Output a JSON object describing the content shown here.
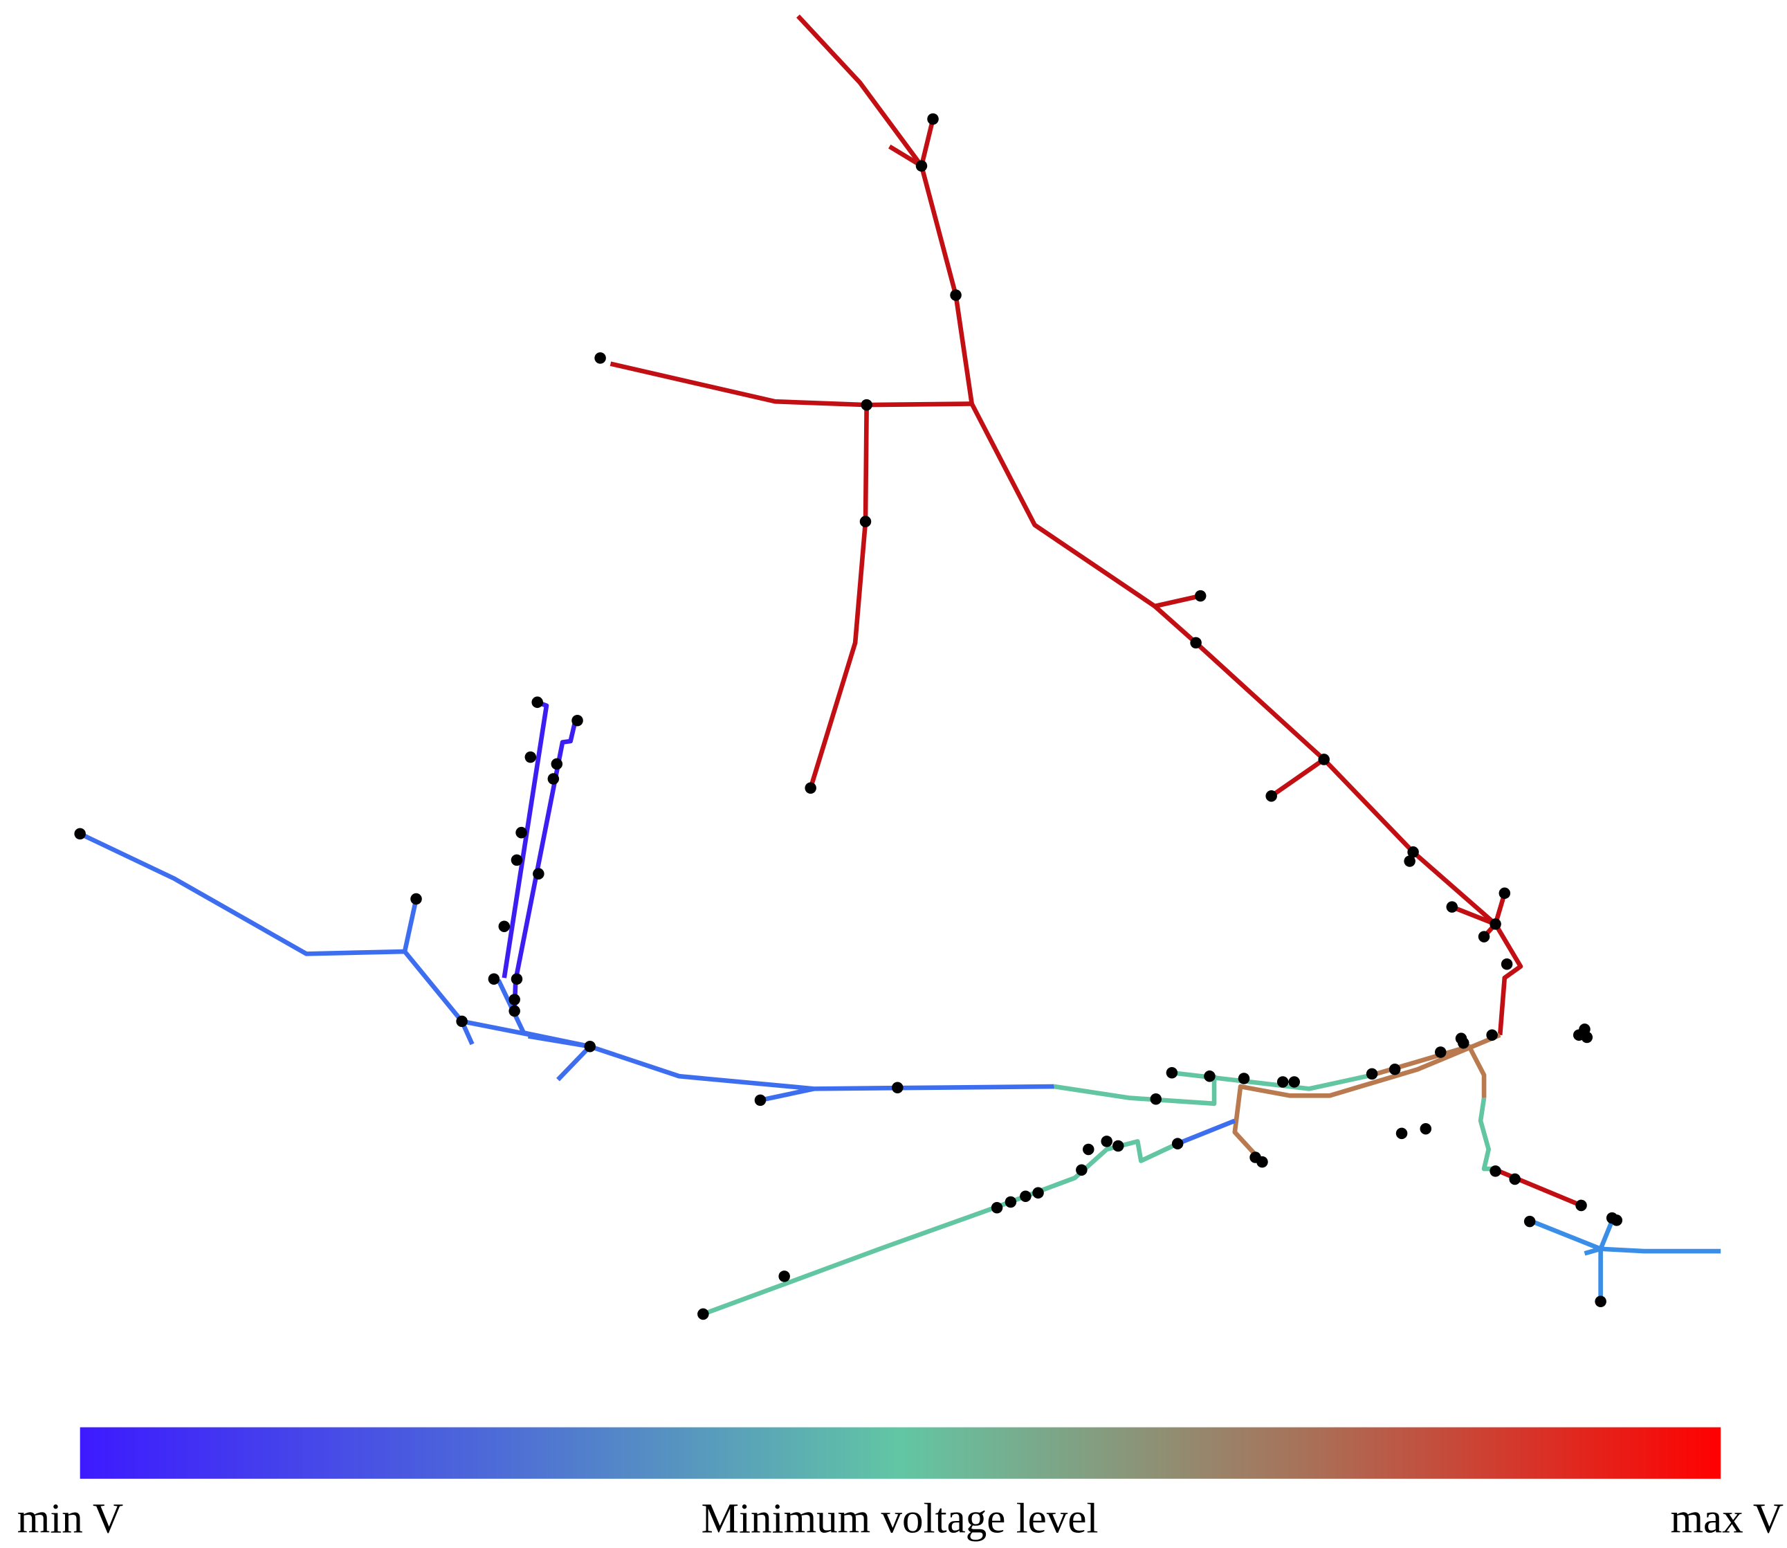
{
  "colorbar": {
    "min_label": "min V",
    "title": "Minimum voltage level",
    "max_label": "max V"
  }
}
